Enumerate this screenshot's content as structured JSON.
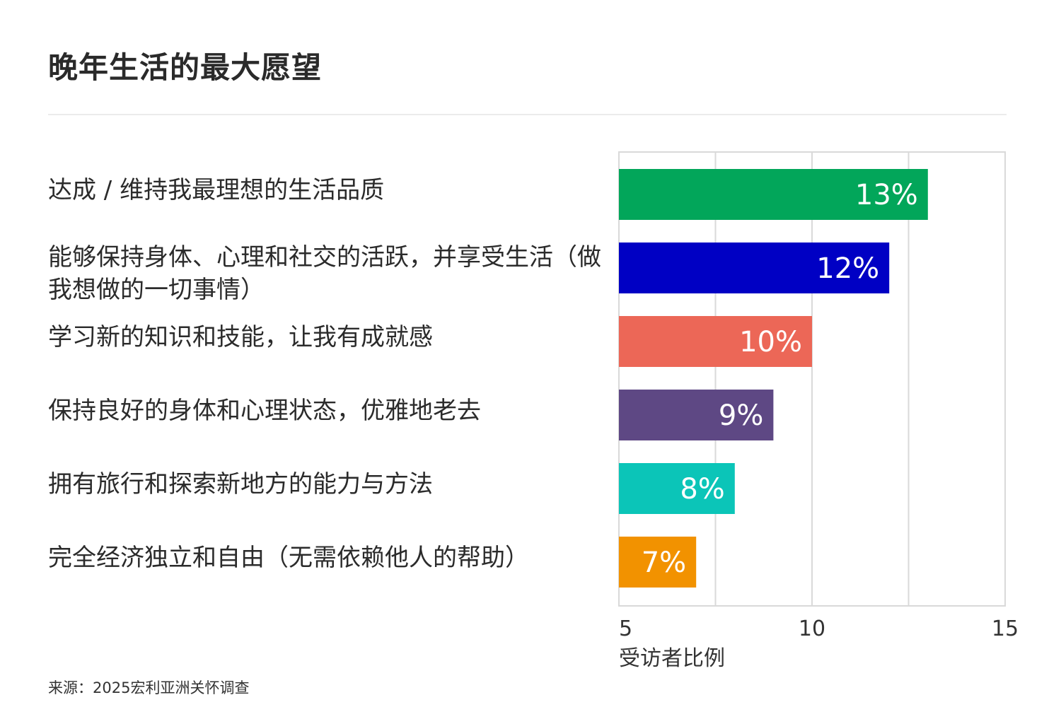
{
  "title": "晚年生活的最大愿望",
  "source": "来源：2025宏利亚洲关怀调查",
  "chart_data": {
    "type": "bar",
    "orientation": "horizontal",
    "title": "晚年生活的最大愿望",
    "xlabel": "受访者比例",
    "ylabel": "",
    "xlim": [
      5,
      15
    ],
    "x_ticks": [
      "5",
      "10",
      "15"
    ],
    "grid": true,
    "categories": [
      "达成 / 维持我最理想的生活品质",
      "能够保持身体、心理和社交的活跃，并享受生活（做我想做的一切事情）",
      "学习新的知识和技能，让我有成就感",
      "保持良好的身体和心理状态，优雅地老去",
      "拥有旅行和探索新地方的能力与方法",
      "完全经济独立和自由（无需依赖他人的帮助）"
    ],
    "values": [
      13,
      12,
      10,
      9,
      8,
      7
    ],
    "value_labels": [
      "13%",
      "12%",
      "10%",
      "9%",
      "8%",
      "7%"
    ],
    "colors": [
      "#02a65a",
      "#0000c4",
      "#ec6757",
      "#5e4884",
      "#0bc5b8",
      "#f29200"
    ]
  }
}
